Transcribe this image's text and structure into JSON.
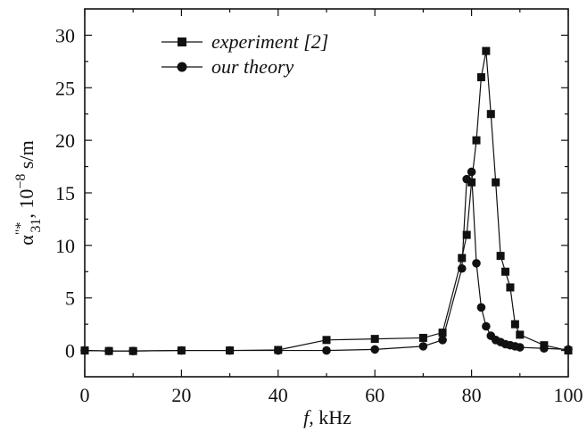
{
  "chart_data": {
    "type": "line",
    "xlabel": {
      "var": "f",
      "unit": ", kHz"
    },
    "ylabel": {
      "sym": "α",
      "sup": "\"*",
      "sub": "31",
      "rest1": ", 10",
      "exp": "−8",
      "rest2": " s/m"
    },
    "xlim": [
      0,
      100
    ],
    "ylim": [
      -2.5,
      32.5
    ],
    "xticks": [
      0,
      20,
      40,
      60,
      80,
      100
    ],
    "yticks": [
      0,
      5,
      10,
      15,
      20,
      25,
      30
    ],
    "grid": false,
    "legend_position": "top-left",
    "series": [
      {
        "name": "experiment [2]",
        "marker": "square",
        "color": "#111111",
        "x": [
          0,
          5,
          10,
          20,
          30,
          40,
          50,
          60,
          70,
          74,
          78,
          79,
          80,
          81,
          82,
          83,
          84,
          85,
          86,
          87,
          88,
          89,
          90,
          95,
          100
        ],
        "y": [
          0,
          -0.05,
          -0.05,
          0,
          0,
          0.05,
          1.0,
          1.1,
          1.2,
          1.7,
          8.8,
          11,
          16,
          20,
          26,
          28.5,
          22.5,
          16,
          9,
          7.5,
          6,
          2.5,
          1.5,
          0.5,
          0
        ]
      },
      {
        "name": "our theory",
        "marker": "circle",
        "color": "#111111",
        "x": [
          0,
          5,
          10,
          20,
          30,
          40,
          50,
          60,
          70,
          74,
          78,
          79,
          80,
          81,
          82,
          83,
          84,
          85,
          86,
          87,
          88,
          89,
          90,
          95,
          100
        ],
        "y": [
          0,
          -0.05,
          -0.05,
          0,
          0,
          0,
          0,
          0.1,
          0.4,
          1.0,
          7.8,
          16.3,
          17.0,
          8.3,
          4.1,
          2.3,
          1.4,
          1.0,
          0.8,
          0.6,
          0.5,
          0.4,
          0.3,
          0.2,
          0.1
        ]
      }
    ]
  }
}
